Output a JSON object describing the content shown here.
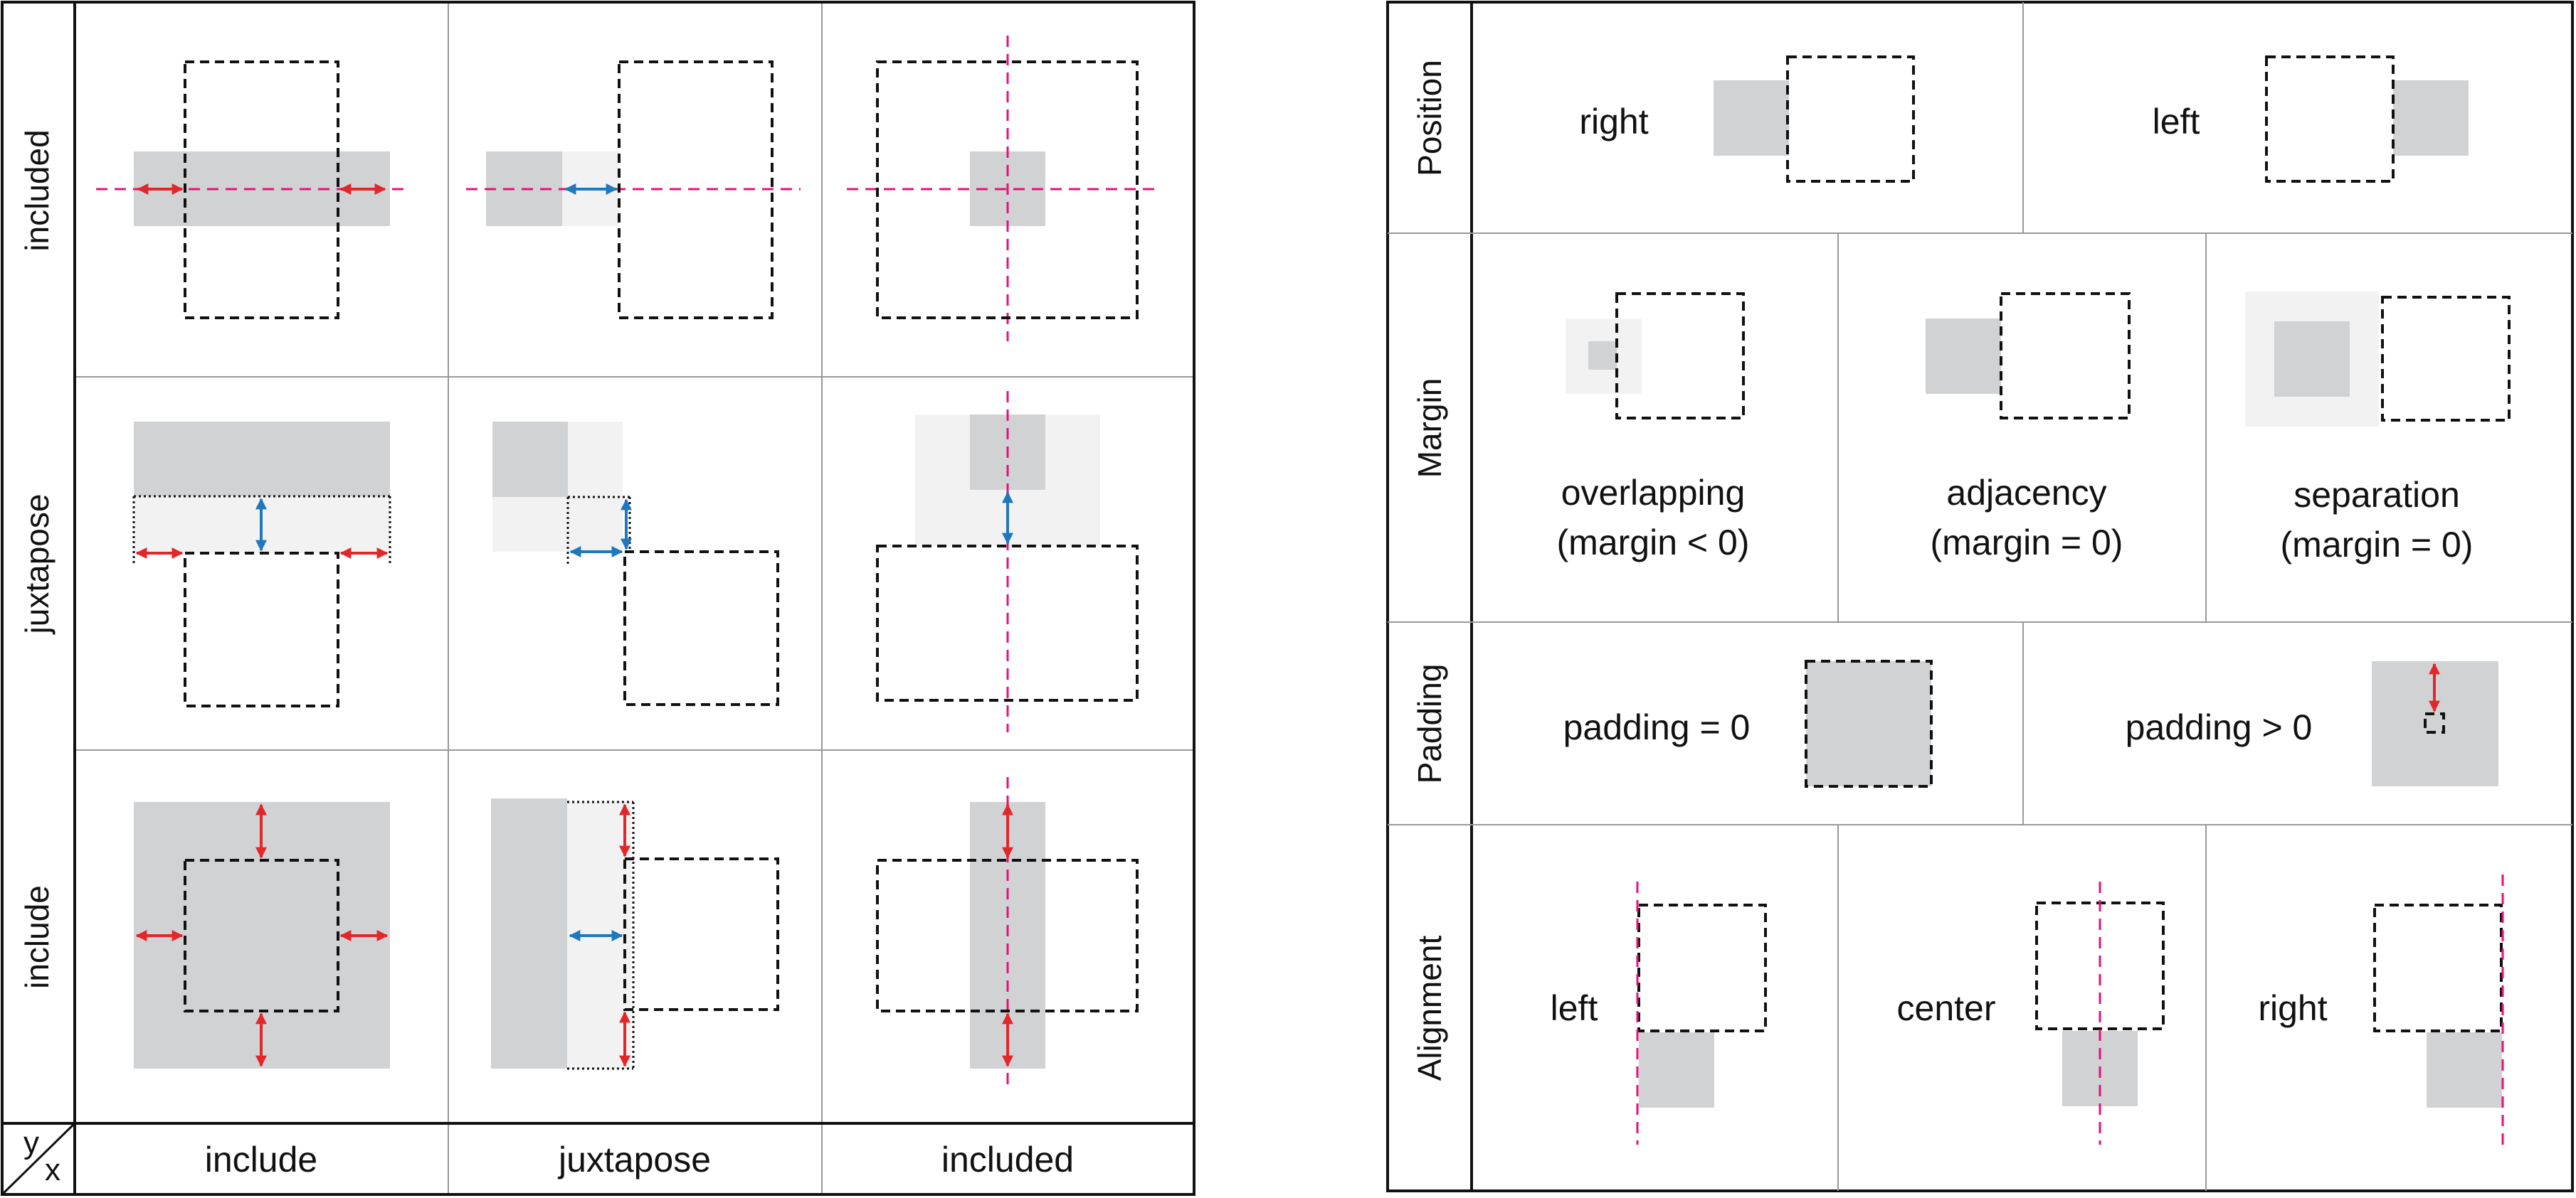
{
  "left_matrix": {
    "row_labels": [
      "included",
      "juxtapose",
      "include"
    ],
    "col_labels": [
      "include",
      "juxtapose",
      "included"
    ],
    "corner_y": "y",
    "corner_x": "x"
  },
  "right_table": {
    "position": {
      "title": "Position",
      "items": [
        "right",
        "left"
      ]
    },
    "margin": {
      "title": "Margin",
      "items": [
        {
          "name": "overlapping",
          "condition": "(margin < 0)"
        },
        {
          "name": "adjacency",
          "condition": "(margin = 0)"
        },
        {
          "name": "separation",
          "condition": "(margin = 0)"
        }
      ]
    },
    "padding": {
      "title": "Padding",
      "items": [
        "padding = 0",
        "padding > 0"
      ]
    },
    "alignment": {
      "title": "Alignment",
      "items": [
        "left",
        "center",
        "right"
      ]
    }
  },
  "colors": {
    "dark_fill": "#d1d2d4",
    "light_fill": "#f2f2f2",
    "red_arrow": "#e3262a",
    "blue_arrow": "#1f77bf",
    "axis_line": "#e3127a"
  }
}
